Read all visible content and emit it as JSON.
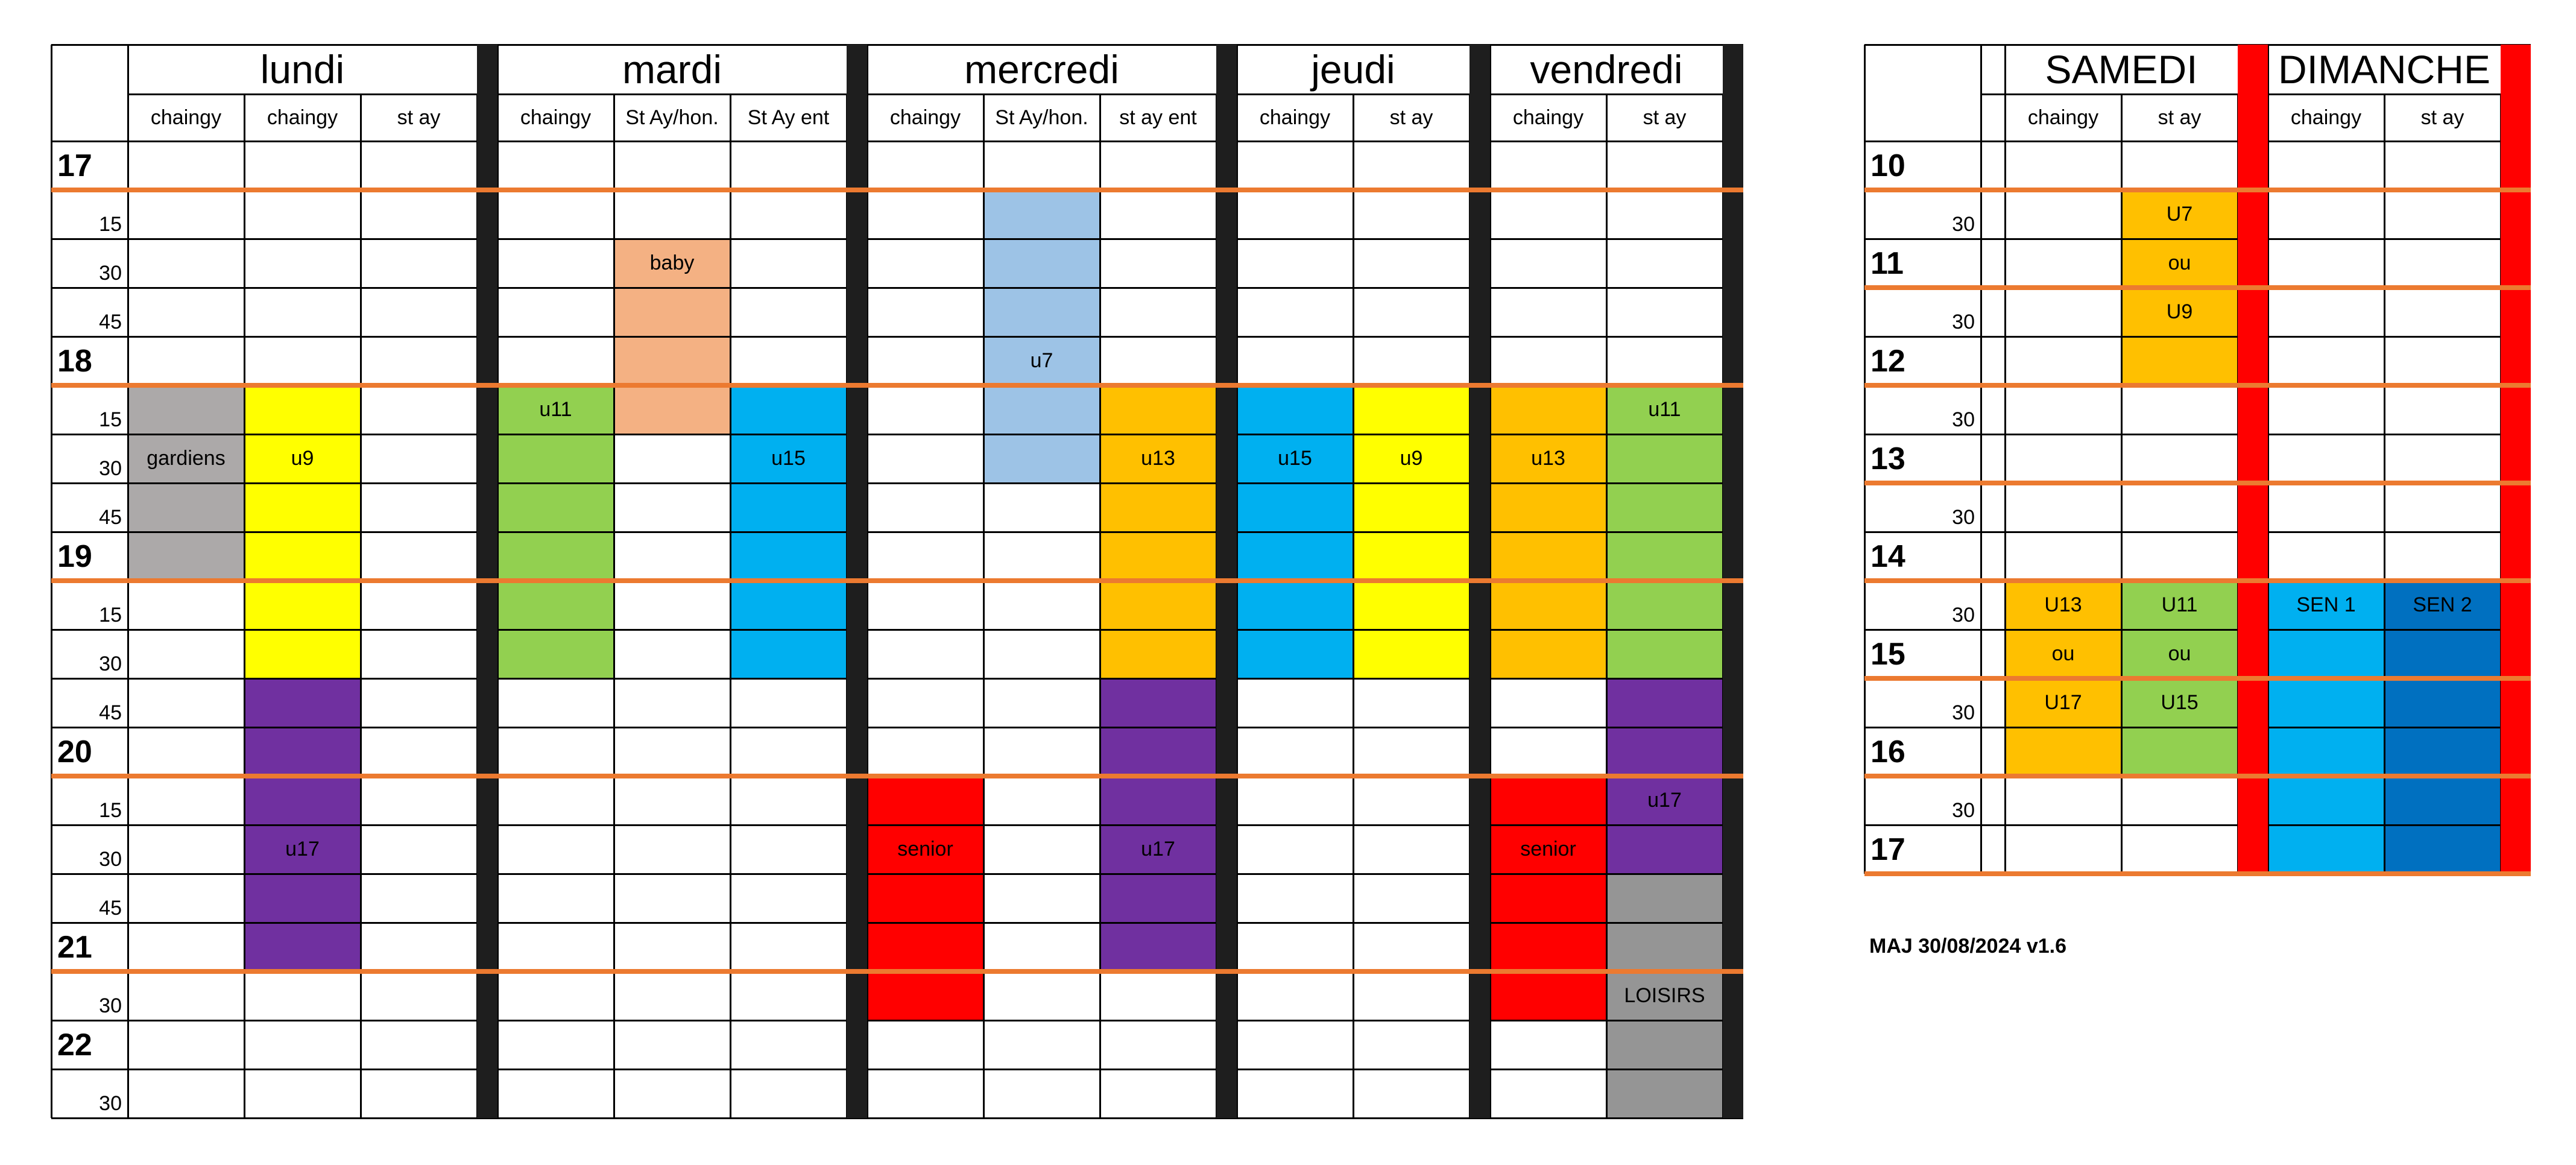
{
  "weekday_table": {
    "hour_labels": [
      {
        "slot": 0,
        "text": "17"
      },
      {
        "slot": 4,
        "text": "18"
      },
      {
        "slot": 8,
        "text": "19"
      },
      {
        "slot": 12,
        "text": "20"
      },
      {
        "slot": 16,
        "text": "21"
      },
      {
        "slot": 18,
        "text": "22"
      }
    ],
    "minute_labels": [
      {
        "slot": 1,
        "text": "15"
      },
      {
        "slot": 2,
        "text": "30"
      },
      {
        "slot": 3,
        "text": "45"
      },
      {
        "slot": 5,
        "text": "15"
      },
      {
        "slot": 6,
        "text": "30"
      },
      {
        "slot": 7,
        "text": "45"
      },
      {
        "slot": 9,
        "text": "15"
      },
      {
        "slot": 10,
        "text": "30"
      },
      {
        "slot": 11,
        "text": "45"
      },
      {
        "slot": 13,
        "text": "15"
      },
      {
        "slot": 14,
        "text": "30"
      },
      {
        "slot": 15,
        "text": "45"
      },
      {
        "slot": 17,
        "text": "30"
      },
      {
        "slot": 19,
        "text": "30"
      }
    ],
    "orange_line_after_slots": [
      0,
      4,
      8,
      12,
      16
    ],
    "days": [
      {
        "name": "lundi",
        "venues": [
          "chaingy",
          "chaingy",
          "st ay"
        ],
        "blocks": [
          {
            "venue": 0,
            "start": 5,
            "end": 9,
            "label": "gardiens",
            "label_slot": 6,
            "color": "#aca9a9"
          },
          {
            "venue": 1,
            "start": 5,
            "end": 11,
            "label": "u9",
            "label_slot": 6,
            "color": "#ffff00"
          },
          {
            "venue": 1,
            "start": 11,
            "end": 17,
            "label": "u17",
            "label_slot": 14,
            "color": "#7030a0"
          }
        ]
      },
      {
        "name": "mardi",
        "venues": [
          "chaingy",
          "St Ay/hon.",
          "St Ay ent"
        ],
        "blocks": [
          {
            "venue": 0,
            "start": 5,
            "end": 11,
            "label": "u11",
            "label_slot": 5,
            "color": "#92d050"
          },
          {
            "venue": 1,
            "start": 2,
            "end": 6,
            "label": "baby",
            "label_slot": 2,
            "color": "#f4b183"
          },
          {
            "venue": 2,
            "start": 5,
            "end": 11,
            "label": "u15",
            "label_slot": 6,
            "color": "#00b0f0"
          }
        ]
      },
      {
        "name": "mercredi",
        "venues": [
          "chaingy",
          "St Ay/hon.",
          "st ay ent"
        ],
        "blocks": [
          {
            "venue": 1,
            "start": 1,
            "end": 7,
            "label": "u7",
            "label_slot": 4,
            "color": "#9dc3e6"
          },
          {
            "venue": 2,
            "start": 5,
            "end": 11,
            "label": "u13",
            "label_slot": 6,
            "color": "#ffc000"
          },
          {
            "venue": 2,
            "start": 11,
            "end": 17,
            "label": "u17",
            "label_slot": 14,
            "color": "#7030a0"
          },
          {
            "venue": 0,
            "start": 13,
            "end": 18,
            "label": "senior",
            "label_slot": 14,
            "color": "#ff0000"
          }
        ]
      },
      {
        "name": "jeudi",
        "venues": [
          "chaingy",
          "st ay"
        ],
        "blocks": [
          {
            "venue": 0,
            "start": 5,
            "end": 11,
            "label": "u15",
            "label_slot": 6,
            "color": "#00b0f0"
          },
          {
            "venue": 1,
            "start": 5,
            "end": 11,
            "label": "u9",
            "label_slot": 6,
            "color": "#ffff00"
          }
        ]
      },
      {
        "name": "vendredi",
        "venues": [
          "chaingy",
          "st ay"
        ],
        "blocks": [
          {
            "venue": 0,
            "start": 5,
            "end": 11,
            "label": "u13",
            "label_slot": 6,
            "color": "#ffc000"
          },
          {
            "venue": 1,
            "start": 5,
            "end": 11,
            "label": "u11",
            "label_slot": 5,
            "color": "#92d050"
          },
          {
            "venue": 1,
            "start": 11,
            "end": 15,
            "label": "u17",
            "label_slot": 13,
            "color": "#7030a0"
          },
          {
            "venue": 0,
            "start": 13,
            "end": 18,
            "label": "senior",
            "label_slot": 14,
            "color": "#ff0000"
          },
          {
            "venue": 1,
            "start": 15,
            "end": 20,
            "label": "LOISIRS",
            "label_slot": 17,
            "color": "#959595"
          }
        ]
      }
    ]
  },
  "weekend_table": {
    "hour_labels": [
      {
        "slot": 0,
        "text": "10"
      },
      {
        "slot": 2,
        "text": "11"
      },
      {
        "slot": 4,
        "text": "12"
      },
      {
        "slot": 6,
        "text": "13"
      },
      {
        "slot": 8,
        "text": "14"
      },
      {
        "slot": 10,
        "text": "15"
      },
      {
        "slot": 12,
        "text": "16"
      },
      {
        "slot": 14,
        "text": "17"
      }
    ],
    "minute_labels": [
      {
        "slot": 1,
        "text": "30"
      },
      {
        "slot": 3,
        "text": "30"
      },
      {
        "slot": 5,
        "text": "30"
      },
      {
        "slot": 7,
        "text": "30"
      },
      {
        "slot": 9,
        "text": "30"
      },
      {
        "slot": 11,
        "text": "30"
      },
      {
        "slot": 13,
        "text": "30"
      }
    ],
    "orange_line_after_slots": [
      0,
      2,
      4,
      6,
      8,
      10,
      12,
      14
    ],
    "days": [
      {
        "name": "SAMEDI",
        "venues": [
          "chaingy",
          "st ay"
        ],
        "blocks": [
          {
            "venue": 1,
            "start": 1,
            "end": 5,
            "label": "",
            "label_slot": 1,
            "color": "#ffc000"
          },
          {
            "venue": 0,
            "start": 9,
            "end": 13,
            "label": "",
            "label_slot": 9,
            "color": "#ffc000"
          },
          {
            "venue": 1,
            "start": 9,
            "end": 13,
            "label": "",
            "label_slot": 9,
            "color": "#92d050"
          }
        ],
        "labels": [
          {
            "venue": 1,
            "slot": 1,
            "text": "U7"
          },
          {
            "venue": 1,
            "slot": 2,
            "text": "ou"
          },
          {
            "venue": 1,
            "slot": 3,
            "text": "U9"
          },
          {
            "venue": 0,
            "slot": 9,
            "text": "U13"
          },
          {
            "venue": 0,
            "slot": 10,
            "text": "ou"
          },
          {
            "venue": 0,
            "slot": 11,
            "text": "U17"
          },
          {
            "venue": 1,
            "slot": 9,
            "text": "U11"
          },
          {
            "venue": 1,
            "slot": 10,
            "text": "ou"
          },
          {
            "venue": 1,
            "slot": 11,
            "text": "U15"
          }
        ]
      },
      {
        "name": "DIMANCHE",
        "venues": [
          "chaingy",
          "st ay"
        ],
        "blocks": [
          {
            "venue": 0,
            "start": 9,
            "end": 15,
            "label": "SEN 1",
            "label_slot": 9,
            "color": "#00b0f0"
          },
          {
            "venue": 1,
            "start": 9,
            "end": 15,
            "label": "SEN 2",
            "label_slot": 9,
            "color": "#0070c0"
          }
        ]
      }
    ]
  },
  "update_note": "MAJ 30/08/2024 v1.6"
}
